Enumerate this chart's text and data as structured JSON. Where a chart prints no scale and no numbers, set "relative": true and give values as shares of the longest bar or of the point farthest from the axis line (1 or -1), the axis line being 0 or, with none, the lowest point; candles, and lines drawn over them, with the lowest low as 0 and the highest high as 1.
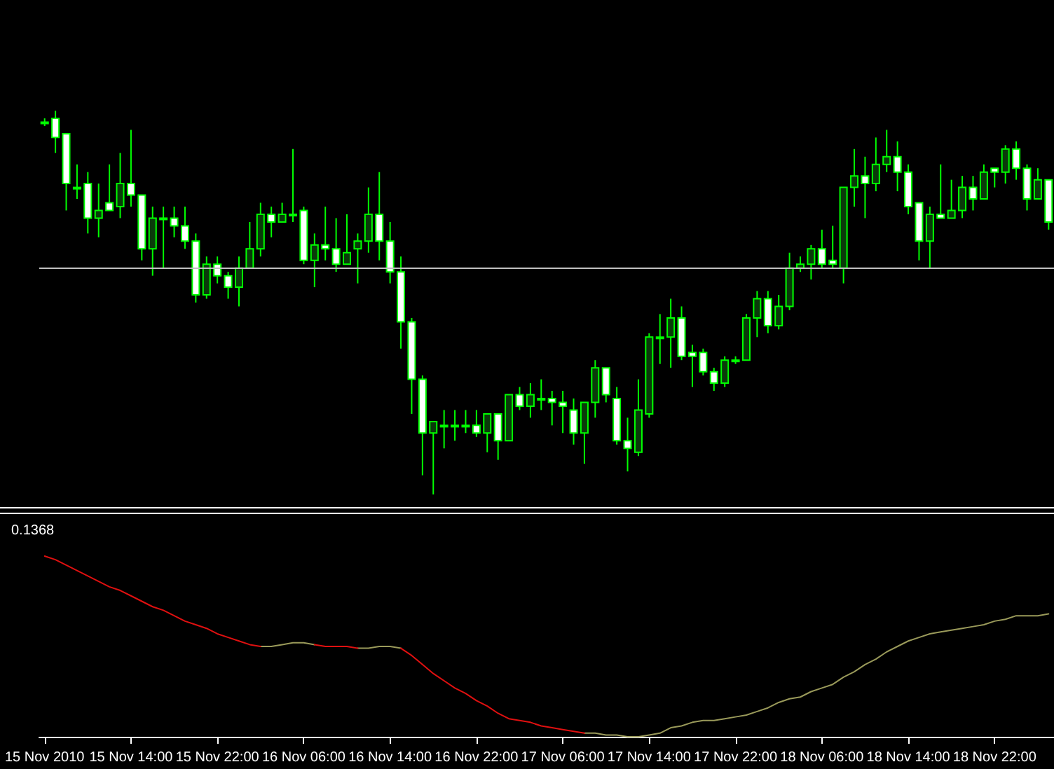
{
  "chart_data": [
    {
      "type": "candlestick",
      "relative": true,
      "tick_labels": false,
      "color": "#00ff00",
      "categories": [
        null,
        null,
        null,
        null,
        null,
        null,
        null,
        null,
        null,
        null,
        null,
        null,
        null,
        null,
        null,
        null,
        null,
        null,
        null,
        null,
        null,
        null,
        null,
        null,
        null,
        null,
        null,
        null,
        null,
        null,
        null,
        null,
        null,
        null,
        null,
        null,
        null,
        null,
        null,
        null,
        null,
        null,
        null,
        null,
        null,
        null,
        null,
        null,
        null,
        null,
        null,
        null,
        null,
        null,
        null,
        null,
        null,
        null,
        null,
        null,
        null,
        null,
        null,
        null,
        null,
        null,
        null,
        null,
        null,
        null,
        null,
        null,
        null,
        null,
        null,
        null,
        null,
        null,
        null,
        null,
        null,
        null,
        null,
        null,
        null,
        null,
        null,
        null,
        null,
        null,
        null,
        null,
        null,
        null
      ],
      "ohlc": [
        [
          0.97,
          0.98,
          0.96,
          0.97
        ],
        [
          0.98,
          1,
          0.89,
          0.93
        ],
        [
          0.94,
          0.94,
          0.74,
          0.81
        ],
        [
          0.8,
          0.86,
          0.77,
          0.8
        ],
        [
          0.81,
          0.84,
          0.68,
          0.72
        ],
        [
          0.72,
          0.81,
          0.67,
          0.74
        ],
        [
          0.76,
          0.86,
          0.74,
          0.74
        ],
        [
          0.75,
          0.89,
          0.72,
          0.81
        ],
        [
          0.81,
          0.95,
          0.75,
          0.78
        ],
        [
          0.78,
          0.78,
          0.61,
          0.64
        ],
        [
          0.64,
          0.75,
          0.57,
          0.72
        ],
        [
          0.72,
          0.75,
          0.59,
          0.72
        ],
        [
          0.72,
          0.75,
          0.67,
          0.7
        ],
        [
          0.7,
          0.75,
          0.64,
          0.66
        ],
        [
          0.66,
          0.68,
          0.5,
          0.52
        ],
        [
          0.52,
          0.62,
          0.51,
          0.6
        ],
        [
          0.6,
          0.62,
          0.55,
          0.57
        ],
        [
          0.57,
          0.58,
          0.51,
          0.54
        ],
        [
          0.54,
          0.62,
          0.49,
          0.59
        ],
        [
          0.59,
          0.71,
          0.59,
          0.64
        ],
        [
          0.64,
          0.76,
          0.62,
          0.73
        ],
        [
          0.73,
          0.75,
          0.67,
          0.71
        ],
        [
          0.71,
          0.76,
          0.71,
          0.73
        ],
        [
          0.73,
          0.9,
          0.71,
          0.73
        ],
        [
          0.74,
          0.75,
          0.6,
          0.61
        ],
        [
          0.61,
          0.68,
          0.54,
          0.65
        ],
        [
          0.65,
          0.75,
          0.61,
          0.64
        ],
        [
          0.64,
          0.72,
          0.58,
          0.6
        ],
        [
          0.6,
          0.73,
          0.6,
          0.63
        ],
        [
          0.64,
          0.68,
          0.55,
          0.66
        ],
        [
          0.66,
          0.8,
          0.63,
          0.73
        ],
        [
          0.73,
          0.84,
          0.61,
          0.66
        ],
        [
          0.66,
          0.71,
          0.55,
          0.58
        ],
        [
          0.58,
          0.62,
          0.38,
          0.45
        ],
        [
          0.45,
          0.46,
          0.21,
          0.3
        ],
        [
          0.3,
          0.31,
          0.05,
          0.16
        ],
        [
          0.16,
          0.19,
          0,
          0.19
        ],
        [
          0.18,
          0.22,
          0.12,
          0.18
        ],
        [
          0.18,
          0.22,
          0.14,
          0.18
        ],
        [
          0.18,
          0.22,
          0.16,
          0.18
        ],
        [
          0.18,
          0.22,
          0.15,
          0.16
        ],
        [
          0.16,
          0.21,
          0.11,
          0.21
        ],
        [
          0.21,
          0.21,
          0.09,
          0.14
        ],
        [
          0.14,
          0.26,
          0.14,
          0.26
        ],
        [
          0.26,
          0.28,
          0.22,
          0.23
        ],
        [
          0.23,
          0.29,
          0.2,
          0.26
        ],
        [
          0.25,
          0.3,
          0.22,
          0.25
        ],
        [
          0.25,
          0.27,
          0.18,
          0.24
        ],
        [
          0.24,
          0.27,
          0.16,
          0.23
        ],
        [
          0.22,
          0.25,
          0.13,
          0.16
        ],
        [
          0.16,
          0.24,
          0.08,
          0.24
        ],
        [
          0.24,
          0.35,
          0.2,
          0.33
        ],
        [
          0.33,
          0.33,
          0.24,
          0.26
        ],
        [
          0.25,
          0.28,
          0.13,
          0.14
        ],
        [
          0.14,
          0.2,
          0.06,
          0.12
        ],
        [
          0.11,
          0.3,
          0.1,
          0.22
        ],
        [
          0.21,
          0.42,
          0.2,
          0.41
        ],
        [
          0.41,
          0.47,
          0.34,
          0.41
        ],
        [
          0.41,
          0.51,
          0.33,
          0.46
        ],
        [
          0.46,
          0.49,
          0.35,
          0.36
        ],
        [
          0.37,
          0.39,
          0.28,
          0.36
        ],
        [
          0.37,
          0.38,
          0.31,
          0.32
        ],
        [
          0.32,
          0.33,
          0.27,
          0.29
        ],
        [
          0.29,
          0.36,
          0.28,
          0.35
        ],
        [
          0.35,
          0.36,
          0.34,
          0.35
        ],
        [
          0.35,
          0.47,
          0.35,
          0.46
        ],
        [
          0.46,
          0.53,
          0.41,
          0.51
        ],
        [
          0.51,
          0.53,
          0.42,
          0.44
        ],
        [
          0.44,
          0.52,
          0.43,
          0.49
        ],
        [
          0.49,
          0.63,
          0.48,
          0.59
        ],
        [
          0.59,
          0.62,
          0.58,
          0.6
        ],
        [
          0.6,
          0.65,
          0.56,
          0.64
        ],
        [
          0.64,
          0.69,
          0.59,
          0.6
        ],
        [
          0.61,
          0.7,
          0.59,
          0.6
        ],
        [
          0.59,
          0.8,
          0.55,
          0.8
        ],
        [
          0.8,
          0.9,
          0.75,
          0.83
        ],
        [
          0.83,
          0.88,
          0.72,
          0.81
        ],
        [
          0.81,
          0.93,
          0.79,
          0.86
        ],
        [
          0.86,
          0.95,
          0.84,
          0.88
        ],
        [
          0.88,
          0.92,
          0.79,
          0.84
        ],
        [
          0.84,
          0.86,
          0.73,
          0.75
        ],
        [
          0.76,
          0.76,
          0.61,
          0.66
        ],
        [
          0.66,
          0.75,
          0.59,
          0.73
        ],
        [
          0.73,
          0.86,
          0.72,
          0.72
        ],
        [
          0.72,
          0.82,
          0.72,
          0.74
        ],
        [
          0.74,
          0.83,
          0.72,
          0.8
        ],
        [
          0.8,
          0.83,
          0.74,
          0.77
        ],
        [
          0.77,
          0.86,
          0.77,
          0.84
        ],
        [
          0.85,
          0.85,
          0.8,
          0.84
        ],
        [
          0.84,
          0.91,
          0.81,
          0.9
        ],
        [
          0.9,
          0.92,
          0.82,
          0.85
        ],
        [
          0.85,
          0.86,
          0.74,
          0.77
        ],
        [
          0.77,
          0.85,
          0.77,
          0.82
        ],
        [
          0.82,
          0.82,
          0.69,
          0.71
        ]
      ],
      "ref_lines": [
        {
          "axis": "y",
          "value": 0.59,
          "color": "#c0c0c0"
        }
      ]
    },
    {
      "type": "line",
      "relative": true,
      "tick_labels": "x",
      "title": "0.1368",
      "categories": [
        "15 Nov 2010",
        null,
        null,
        null,
        null,
        null,
        null,
        null,
        "15 Nov 14:00",
        null,
        null,
        null,
        null,
        null,
        null,
        null,
        "15 Nov 22:00",
        null,
        null,
        null,
        null,
        null,
        null,
        null,
        "16 Nov 06:00",
        null,
        null,
        null,
        null,
        null,
        null,
        null,
        "16 Nov 14:00",
        null,
        null,
        null,
        null,
        null,
        null,
        null,
        "16 Nov 22:00",
        null,
        null,
        null,
        null,
        null,
        null,
        null,
        "17 Nov 06:00",
        null,
        null,
        null,
        null,
        null,
        null,
        null,
        "17 Nov 14:00",
        null,
        null,
        null,
        null,
        null,
        null,
        null,
        "17 Nov 22:00",
        null,
        null,
        null,
        null,
        null,
        null,
        null,
        "18 Nov 06:00",
        null,
        null,
        null,
        null,
        null,
        null,
        null,
        "18 Nov 14:00",
        null,
        null,
        null,
        null,
        null,
        null,
        null,
        "18 Nov 22:00",
        null,
        null,
        null,
        null,
        null
      ],
      "series": [
        {
          "color": "#9a9a5a",
          "values": [
            null,
            null,
            null,
            null,
            null,
            null,
            null,
            null,
            null,
            null,
            null,
            null,
            null,
            null,
            null,
            null,
            null,
            null,
            null,
            null,
            0.5,
            0.5,
            0.51,
            0.52,
            0.52,
            0.51,
            null,
            null,
            null,
            0.49,
            0.49,
            0.5,
            0.5,
            0.49,
            null,
            null,
            null,
            null,
            null,
            null,
            null,
            null,
            null,
            null,
            null,
            null,
            null,
            null,
            null,
            null,
            0.02,
            0.02,
            0.01,
            0.01,
            0,
            0,
            0.01,
            0.02,
            0.05,
            0.06,
            0.08,
            0.09,
            0.09,
            0.1,
            0.11,
            0.12,
            0.14,
            0.16,
            0.19,
            0.21,
            0.22,
            0.25,
            0.27,
            0.29,
            0.33,
            0.36,
            0.4,
            0.43,
            0.47,
            0.5,
            0.53,
            0.55,
            0.57,
            0.58,
            0.59,
            0.6,
            0.61,
            0.62,
            0.64,
            0.65,
            0.67,
            0.67,
            0.67,
            0.68
          ]
        },
        {
          "color": "#e01010",
          "values": [
            1,
            0.98,
            0.95,
            0.92,
            0.89,
            0.86,
            0.83,
            0.81,
            0.78,
            0.75,
            0.72,
            0.7,
            0.67,
            0.64,
            0.62,
            0.6,
            0.57,
            0.55,
            0.53,
            0.51,
            0.5,
            null,
            null,
            null,
            null,
            0.51,
            0.5,
            0.5,
            0.5,
            0.49,
            null,
            null,
            null,
            0.49,
            0.45,
            0.4,
            0.35,
            0.31,
            0.27,
            0.24,
            0.2,
            0.17,
            0.13,
            0.1,
            0.09,
            0.08,
            0.06,
            0.05,
            0.04,
            0.03,
            0.02,
            null,
            null,
            null,
            null,
            null,
            null,
            null,
            null,
            null,
            null,
            null,
            null,
            null,
            null,
            null,
            null,
            null,
            null,
            null,
            null,
            null,
            null,
            null,
            null,
            null,
            null,
            null,
            null,
            null,
            null,
            null,
            null,
            null,
            null,
            null,
            null,
            null,
            null,
            null,
            null,
            null,
            null,
            null
          ]
        }
      ]
    }
  ]
}
